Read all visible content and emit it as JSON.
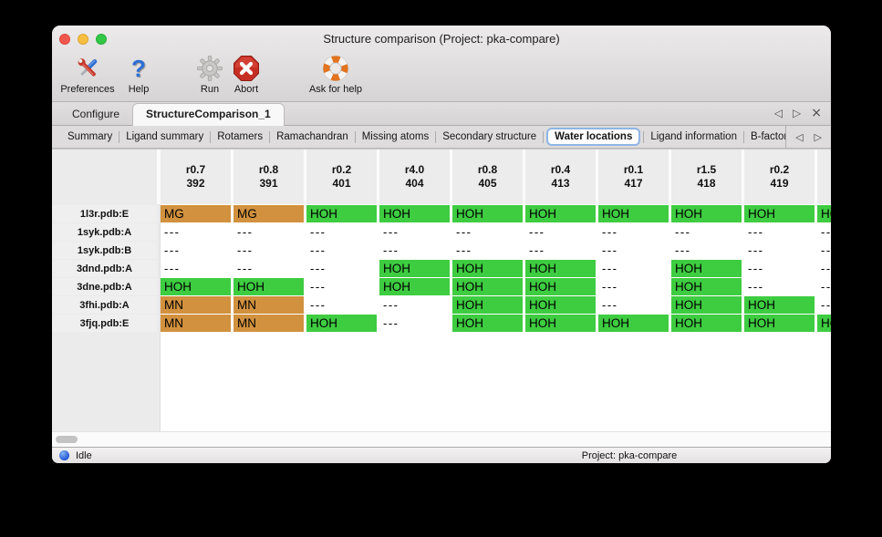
{
  "window": {
    "title": "Structure comparison (Project: pka-compare)"
  },
  "toolbar": {
    "items": [
      {
        "label": "Preferences"
      },
      {
        "label": "Help"
      },
      {
        "label": "Run"
      },
      {
        "label": "Abort"
      },
      {
        "label": "Ask for help"
      }
    ]
  },
  "tabs": {
    "items": [
      {
        "label": "Configure",
        "selected": false
      },
      {
        "label": "StructureComparison_1",
        "selected": true
      }
    ]
  },
  "icons": {
    "tab_back": "◁",
    "tab_forward": "▷",
    "tab_close": "×",
    "subtab_back": "◁",
    "subtab_forward": "▷"
  },
  "subtabs": {
    "items": [
      "Summary",
      "Ligand summary",
      "Rotamers",
      "Ramachandran",
      "Missing atoms",
      "Secondary structure",
      "Water locations",
      "Ligand information",
      "B-factors"
    ],
    "selected": "Water locations"
  },
  "table": {
    "columns": [
      {
        "line1": "r0.7",
        "line2": "392"
      },
      {
        "line1": "r0.8",
        "line2": "391"
      },
      {
        "line1": "r0.2",
        "line2": "401"
      },
      {
        "line1": "r4.0",
        "line2": "404"
      },
      {
        "line1": "r0.8",
        "line2": "405"
      },
      {
        "line1": "r0.4",
        "line2": "413"
      },
      {
        "line1": "r0.1",
        "line2": "417"
      },
      {
        "line1": "r1.5",
        "line2": "418"
      },
      {
        "line1": "r0.2",
        "line2": "419"
      },
      {
        "line1": "",
        "line2": ""
      }
    ],
    "rows": [
      {
        "label": "1l3r.pdb:E",
        "cells": [
          {
            "t": "MG",
            "c": "orange"
          },
          {
            "t": "MG",
            "c": "orange"
          },
          {
            "t": "HOH",
            "c": "green"
          },
          {
            "t": "HOH",
            "c": "green"
          },
          {
            "t": "HOH",
            "c": "green"
          },
          {
            "t": "HOH",
            "c": "green"
          },
          {
            "t": "HOH",
            "c": "green"
          },
          {
            "t": "HOH",
            "c": "green"
          },
          {
            "t": "HOH",
            "c": "green"
          },
          {
            "t": "HOH",
            "c": "green"
          }
        ]
      },
      {
        "label": "1syk.pdb:A",
        "cells": [
          {
            "t": "---",
            "c": "none"
          },
          {
            "t": "---",
            "c": "none"
          },
          {
            "t": "---",
            "c": "none"
          },
          {
            "t": "---",
            "c": "none"
          },
          {
            "t": "---",
            "c": "none"
          },
          {
            "t": "---",
            "c": "none"
          },
          {
            "t": "---",
            "c": "none"
          },
          {
            "t": "---",
            "c": "none"
          },
          {
            "t": "---",
            "c": "none"
          },
          {
            "t": "---",
            "c": "none"
          }
        ]
      },
      {
        "label": "1syk.pdb:B",
        "cells": [
          {
            "t": "---",
            "c": "none"
          },
          {
            "t": "---",
            "c": "none"
          },
          {
            "t": "---",
            "c": "none"
          },
          {
            "t": "---",
            "c": "none"
          },
          {
            "t": "---",
            "c": "none"
          },
          {
            "t": "---",
            "c": "none"
          },
          {
            "t": "---",
            "c": "none"
          },
          {
            "t": "---",
            "c": "none"
          },
          {
            "t": "---",
            "c": "none"
          },
          {
            "t": "---",
            "c": "none"
          }
        ]
      },
      {
        "label": "3dnd.pdb:A",
        "cells": [
          {
            "t": "---",
            "c": "none"
          },
          {
            "t": "---",
            "c": "none"
          },
          {
            "t": "---",
            "c": "none"
          },
          {
            "t": "HOH",
            "c": "green"
          },
          {
            "t": "HOH",
            "c": "green"
          },
          {
            "t": "HOH",
            "c": "green"
          },
          {
            "t": "---",
            "c": "none"
          },
          {
            "t": "HOH",
            "c": "green"
          },
          {
            "t": "---",
            "c": "none"
          },
          {
            "t": "---",
            "c": "none"
          }
        ]
      },
      {
        "label": "3dne.pdb:A",
        "cells": [
          {
            "t": "HOH",
            "c": "green"
          },
          {
            "t": "HOH",
            "c": "green"
          },
          {
            "t": "---",
            "c": "none"
          },
          {
            "t": "HOH",
            "c": "green"
          },
          {
            "t": "HOH",
            "c": "green"
          },
          {
            "t": "HOH",
            "c": "green"
          },
          {
            "t": "---",
            "c": "none"
          },
          {
            "t": "HOH",
            "c": "green"
          },
          {
            "t": "---",
            "c": "none"
          },
          {
            "t": "---",
            "c": "none"
          }
        ]
      },
      {
        "label": "3fhi.pdb:A",
        "cells": [
          {
            "t": "MN",
            "c": "orange"
          },
          {
            "t": "MN",
            "c": "orange"
          },
          {
            "t": "---",
            "c": "none"
          },
          {
            "t": "---",
            "c": "none"
          },
          {
            "t": "HOH",
            "c": "green"
          },
          {
            "t": "HOH",
            "c": "green"
          },
          {
            "t": "---",
            "c": "none"
          },
          {
            "t": "HOH",
            "c": "green"
          },
          {
            "t": "HOH",
            "c": "green"
          },
          {
            "t": "---",
            "c": "none"
          }
        ]
      },
      {
        "label": "3fjq.pdb:E",
        "cells": [
          {
            "t": "MN",
            "c": "orange"
          },
          {
            "t": "MN",
            "c": "orange"
          },
          {
            "t": "HOH",
            "c": "green"
          },
          {
            "t": "---",
            "c": "none"
          },
          {
            "t": "HOH",
            "c": "green"
          },
          {
            "t": "HOH",
            "c": "green"
          },
          {
            "t": "HOH",
            "c": "green"
          },
          {
            "t": "HOH",
            "c": "green"
          },
          {
            "t": "HOH",
            "c": "green"
          },
          {
            "t": "HOH",
            "c": "green"
          }
        ]
      }
    ]
  },
  "statusbar": {
    "status": "Idle",
    "project": "Project: pka-compare"
  },
  "palette": {
    "orange": "#D2913E",
    "green": "#3ECC41",
    "none": "#FFFFFF",
    "selection_ring": "#8FB5E4",
    "status_dot": "#2B5CD6"
  }
}
